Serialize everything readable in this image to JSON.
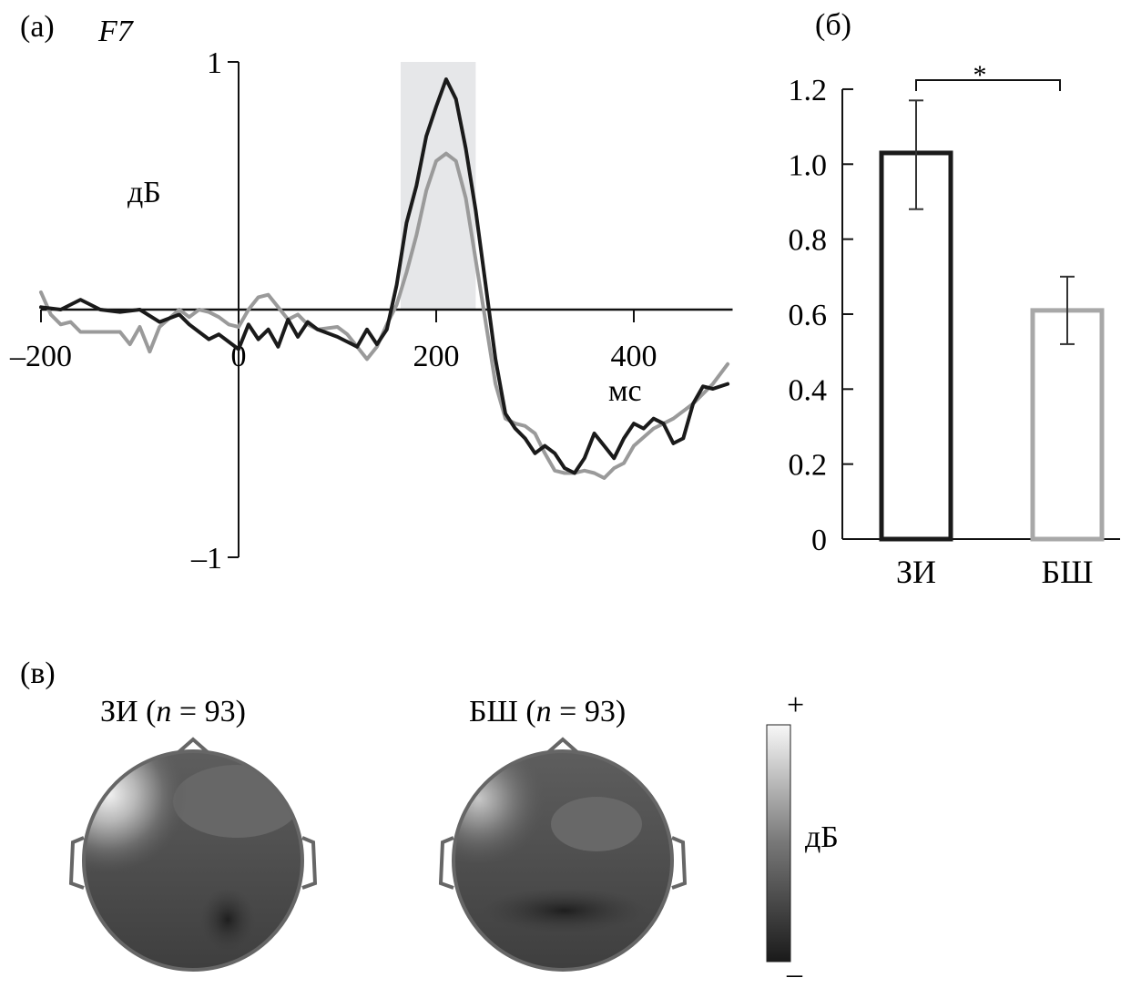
{
  "chart_data": [
    {
      "type": "line",
      "panel_label": "(a)",
      "title": "F7",
      "xlabel": "мс",
      "ylabel": "дБ",
      "xlim": [
        -200,
        500
      ],
      "ylim": [
        -1,
        1
      ],
      "xticks": [
        "-200",
        "0",
        "200",
        "400"
      ],
      "xtick_values": [
        -200,
        0,
        200,
        400
      ],
      "yticks": [
        "1",
        "-1"
      ],
      "ytick_values": [
        1,
        -1
      ],
      "highlight_window_ms": [
        164,
        240
      ],
      "series": [
        {
          "name": "ЗИ",
          "color": "#1a1a1a",
          "x": [
            -200,
            -180,
            -160,
            -140,
            -120,
            -100,
            -80,
            -60,
            -50,
            -40,
            -30,
            -20,
            -10,
            0,
            10,
            20,
            30,
            40,
            50,
            60,
            70,
            80,
            100,
            120,
            130,
            140,
            150,
            160,
            170,
            180,
            190,
            200,
            210,
            220,
            230,
            240,
            250,
            260,
            270,
            280,
            290,
            300,
            310,
            320,
            330,
            340,
            350,
            360,
            370,
            380,
            390,
            400,
            410,
            420,
            430,
            440,
            450,
            460,
            470,
            480,
            495
          ],
          "y": [
            0.01,
            0.0,
            0.04,
            0.0,
            -0.01,
            0.0,
            -0.05,
            -0.02,
            -0.06,
            -0.09,
            -0.12,
            -0.1,
            -0.13,
            -0.16,
            -0.06,
            -0.12,
            -0.08,
            -0.15,
            -0.04,
            -0.11,
            -0.05,
            -0.08,
            -0.11,
            -0.15,
            -0.08,
            -0.14,
            -0.08,
            0.1,
            0.35,
            0.5,
            0.7,
            0.82,
            0.93,
            0.85,
            0.65,
            0.4,
            0.1,
            -0.2,
            -0.42,
            -0.48,
            -0.52,
            -0.58,
            -0.55,
            -0.58,
            -0.64,
            -0.66,
            -0.6,
            -0.5,
            -0.55,
            -0.6,
            -0.52,
            -0.46,
            -0.48,
            -0.44,
            -0.46,
            -0.54,
            -0.52,
            -0.38,
            -0.31,
            -0.32,
            -0.3
          ]
        },
        {
          "name": "БШ",
          "color": "#9a9a9a",
          "x": [
            -200,
            -190,
            -180,
            -170,
            -160,
            -140,
            -120,
            -110,
            -100,
            -90,
            -80,
            -60,
            -50,
            -40,
            -30,
            -20,
            -10,
            0,
            10,
            20,
            30,
            40,
            50,
            60,
            70,
            80,
            100,
            110,
            120,
            130,
            140,
            150,
            160,
            170,
            180,
            190,
            200,
            210,
            220,
            230,
            240,
            250,
            260,
            270,
            280,
            290,
            300,
            310,
            320,
            330,
            340,
            350,
            360,
            370,
            380,
            390,
            400,
            420,
            440,
            460,
            480,
            495
          ],
          "y": [
            0.07,
            -0.02,
            -0.06,
            -0.05,
            -0.09,
            -0.09,
            -0.09,
            -0.14,
            -0.07,
            -0.17,
            -0.07,
            0.0,
            -0.03,
            0.0,
            -0.01,
            -0.03,
            -0.06,
            -0.07,
            0.0,
            0.05,
            0.06,
            0.01,
            -0.04,
            -0.02,
            -0.06,
            -0.08,
            -0.07,
            -0.1,
            -0.15,
            -0.2,
            -0.15,
            -0.06,
            0.02,
            0.15,
            0.3,
            0.48,
            0.6,
            0.63,
            0.6,
            0.45,
            0.2,
            -0.05,
            -0.3,
            -0.44,
            -0.46,
            -0.47,
            -0.5,
            -0.58,
            -0.65,
            -0.66,
            -0.66,
            -0.65,
            -0.66,
            -0.68,
            -0.64,
            -0.62,
            -0.55,
            -0.48,
            -0.44,
            -0.38,
            -0.3,
            -0.22
          ]
        }
      ]
    },
    {
      "type": "bar",
      "panel_label": "(б)",
      "categories": [
        "ЗИ",
        "БШ"
      ],
      "values": [
        1.03,
        0.61
      ],
      "error_low": [
        0.88,
        0.52
      ],
      "error_high": [
        1.17,
        0.7
      ],
      "colors": [
        "#1a1a1a",
        "#a8a8a8"
      ],
      "ylim": [
        0,
        1.2
      ],
      "yticks": [
        "0",
        "0.2",
        "0.4",
        "0.6",
        "0.8",
        "1.0",
        "1.2"
      ],
      "significance": "*"
    }
  ],
  "topomaps": {
    "panel_label": "(в)",
    "maps": [
      {
        "label_prefix": "ЗИ (",
        "n_symbol": "n",
        "label_suffix": " = 93)"
      },
      {
        "label_prefix": "БШ (",
        "n_symbol": "n",
        "label_suffix": " = 93)"
      }
    ],
    "colorbar": {
      "top": "+",
      "bottom": "–",
      "unit": "дБ"
    }
  }
}
